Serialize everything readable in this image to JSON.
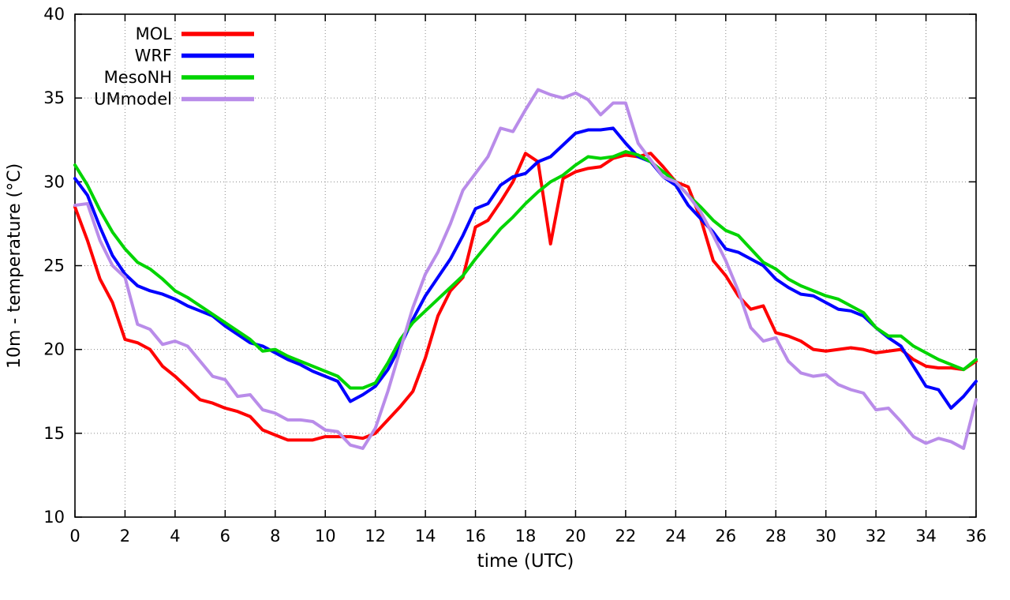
{
  "chart_data": {
    "type": "line",
    "title": "",
    "xlabel": "time (UTC)",
    "ylabel": "10m - temperature (°C)",
    "xlim": [
      0,
      36
    ],
    "ylim": [
      10,
      40
    ],
    "xticks": [
      0,
      2,
      4,
      6,
      8,
      10,
      12,
      14,
      16,
      18,
      20,
      22,
      24,
      26,
      28,
      30,
      32,
      34,
      36
    ],
    "yticks": [
      10,
      15,
      20,
      25,
      30,
      35,
      40
    ],
    "grid": true,
    "grid_style": "dotted",
    "legend_position": "top-left-inside",
    "x_start": 0,
    "x_step": 0.5,
    "series": [
      {
        "name": "MOL",
        "color": "#ff0000",
        "values": [
          28.5,
          26.5,
          24.2,
          22.8,
          20.6,
          20.4,
          20.0,
          19.0,
          18.4,
          17.7,
          17.0,
          16.8,
          16.5,
          16.3,
          16.0,
          15.2,
          14.9,
          14.6,
          14.6,
          14.6,
          14.8,
          14.8,
          14.8,
          14.7,
          15.0,
          15.8,
          16.6,
          17.5,
          19.5,
          22.0,
          23.5,
          24.3,
          27.3,
          27.7,
          28.8,
          30.0,
          31.7,
          31.2,
          26.3,
          30.2,
          30.6,
          30.8,
          30.9,
          31.4,
          31.6,
          31.5,
          31.7,
          30.9,
          30.0,
          29.7,
          27.8,
          25.3,
          24.4,
          23.2,
          22.4,
          22.6,
          21.0,
          20.8,
          20.5,
          20.0,
          19.9,
          20.0,
          20.1,
          20.0,
          19.8,
          19.9,
          20.0,
          19.4,
          19.0,
          18.9,
          18.9,
          18.8,
          19.3
        ]
      },
      {
        "name": "WRF",
        "color": "#0000ff",
        "values": [
          30.2,
          29.2,
          27.3,
          25.6,
          24.5,
          23.8,
          23.5,
          23.3,
          23.0,
          22.6,
          22.3,
          22.0,
          21.4,
          20.9,
          20.4,
          20.2,
          19.8,
          19.4,
          19.1,
          18.7,
          18.4,
          18.1,
          16.9,
          17.3,
          17.8,
          18.8,
          20.2,
          21.8,
          23.2,
          24.3,
          25.4,
          26.8,
          28.4,
          28.7,
          29.8,
          30.3,
          30.5,
          31.2,
          31.5,
          32.2,
          32.9,
          33.1,
          33.1,
          33.2,
          32.3,
          31.5,
          31.2,
          30.3,
          29.8,
          28.6,
          27.8,
          27.0,
          26.0,
          25.8,
          25.4,
          25.0,
          24.2,
          23.7,
          23.3,
          23.2,
          22.8,
          22.4,
          22.3,
          22.0,
          21.3,
          20.7,
          20.2,
          19.0,
          17.8,
          17.6,
          16.5,
          17.2,
          18.1
        ]
      },
      {
        "name": "MesoNH",
        "color": "#00d400",
        "values": [
          31.0,
          29.8,
          28.3,
          27.0,
          26.0,
          25.2,
          24.8,
          24.2,
          23.5,
          23.1,
          22.6,
          22.1,
          21.6,
          21.1,
          20.6,
          19.9,
          20.0,
          19.6,
          19.3,
          19.0,
          18.7,
          18.4,
          17.7,
          17.7,
          18.0,
          19.2,
          20.6,
          21.6,
          22.3,
          23.0,
          23.7,
          24.4,
          25.4,
          26.3,
          27.2,
          27.9,
          28.7,
          29.4,
          30.0,
          30.4,
          31.0,
          31.5,
          31.4,
          31.5,
          31.8,
          31.6,
          31.2,
          30.6,
          30.0,
          29.2,
          28.5,
          27.7,
          27.1,
          26.8,
          26.0,
          25.2,
          24.8,
          24.2,
          23.8,
          23.5,
          23.2,
          23.0,
          22.6,
          22.2,
          21.3,
          20.8,
          20.8,
          20.2,
          19.8,
          19.4,
          19.1,
          18.8,
          19.4
        ]
      },
      {
        "name": "UMmodel",
        "color": "#b98ce9",
        "values": [
          28.6,
          28.7,
          26.5,
          25.0,
          24.3,
          21.5,
          21.2,
          20.3,
          20.5,
          20.2,
          19.3,
          18.4,
          18.2,
          17.2,
          17.3,
          16.4,
          16.2,
          15.8,
          15.8,
          15.7,
          15.2,
          15.1,
          14.3,
          14.1,
          15.3,
          17.5,
          20.0,
          22.5,
          24.5,
          25.8,
          27.5,
          29.5,
          30.5,
          31.5,
          33.2,
          33.0,
          34.3,
          35.5,
          35.2,
          35.0,
          35.3,
          34.9,
          34.0,
          34.7,
          34.7,
          32.3,
          31.3,
          30.3,
          30.0,
          29.2,
          28.2,
          26.8,
          25.3,
          23.5,
          21.3,
          20.5,
          20.7,
          19.3,
          18.6,
          18.4,
          18.5,
          17.9,
          17.6,
          17.4,
          16.4,
          16.5,
          15.7,
          14.8,
          14.4,
          14.7,
          14.5,
          14.1,
          17.0
        ]
      }
    ]
  }
}
